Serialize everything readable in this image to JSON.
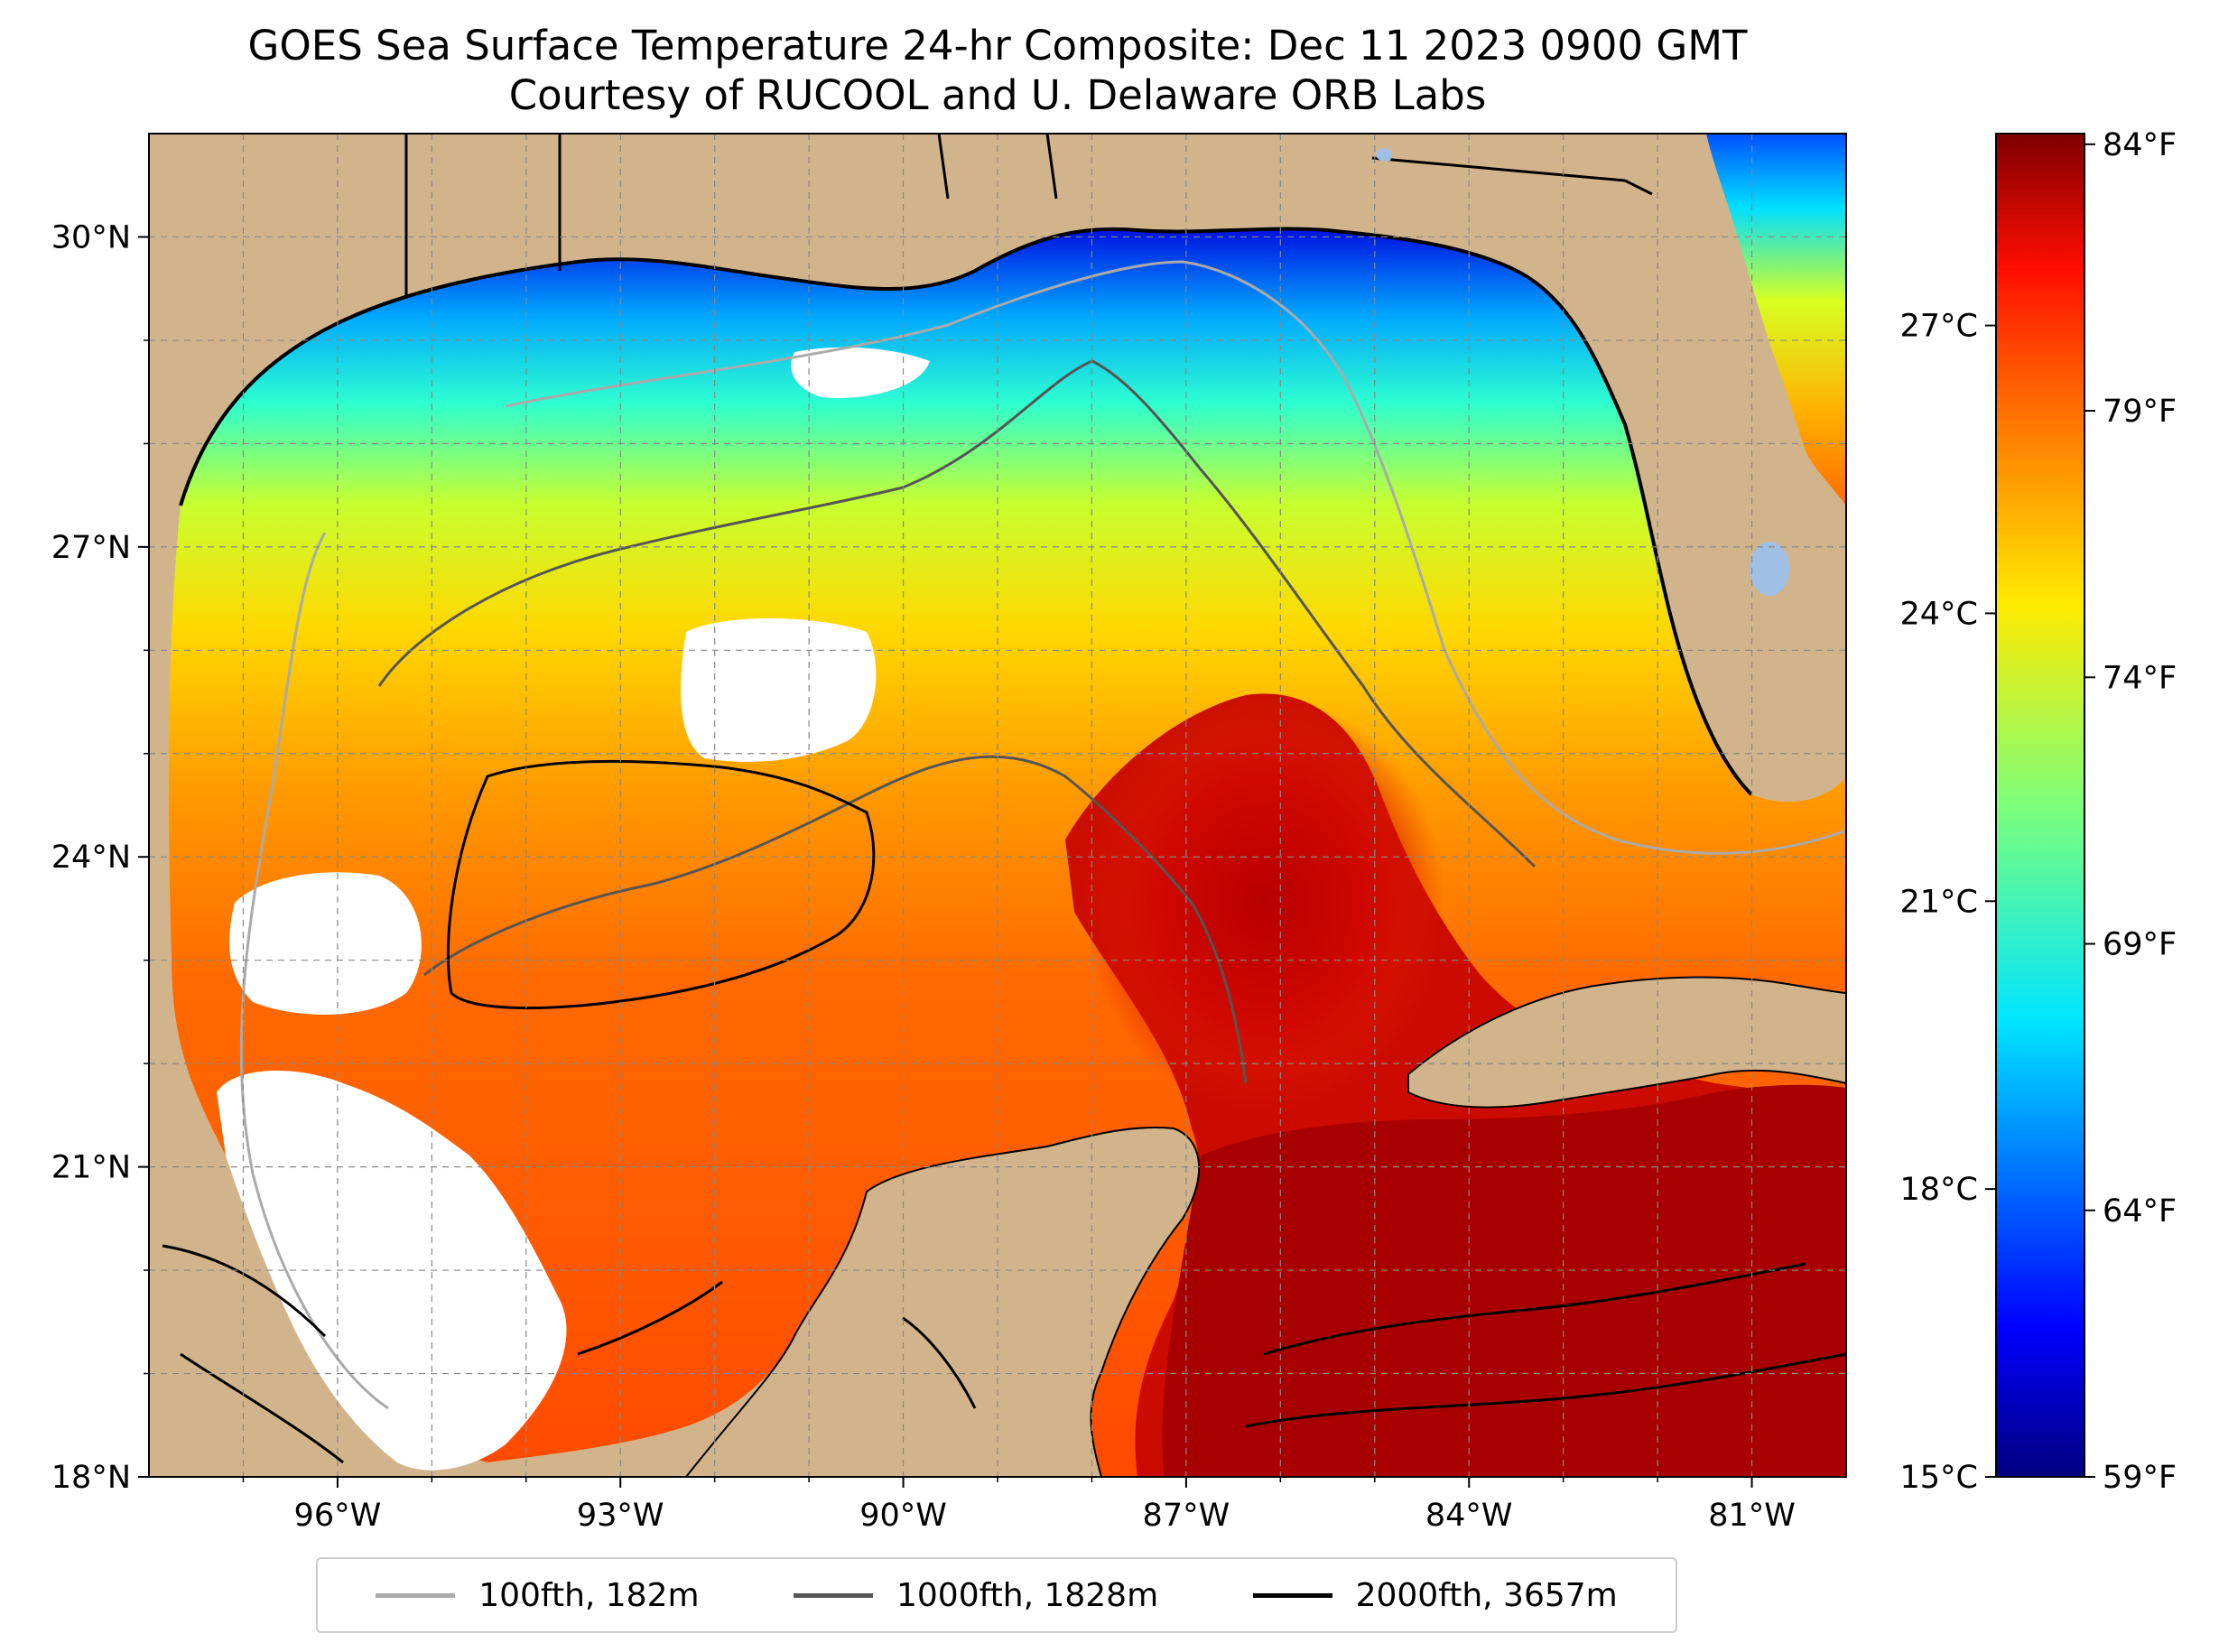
{
  "title": {
    "line1": "GOES Sea Surface Temperature 24-hr Composite: Dec 11 2023 0900 GMT",
    "line2": "Courtesy of RUCOOL and U. Delaware ORB Labs"
  },
  "map": {
    "lon_range": [
      -98,
      -80
    ],
    "lat_range": [
      18,
      31
    ],
    "lon_ticks": [
      {
        "value": -96,
        "label": "96°W"
      },
      {
        "value": -93,
        "label": "93°W"
      },
      {
        "value": -90,
        "label": "90°W"
      },
      {
        "value": -87,
        "label": "87°W"
      },
      {
        "value": -84,
        "label": "84°W"
      },
      {
        "value": -81,
        "label": "81°W"
      }
    ],
    "lat_ticks": [
      {
        "value": 18,
        "label": "18°N"
      },
      {
        "value": 21,
        "label": "21°N"
      },
      {
        "value": 24,
        "label": "24°N"
      },
      {
        "value": 27,
        "label": "27°N"
      },
      {
        "value": 30,
        "label": "30°N"
      }
    ],
    "land_color": "#d2b48c",
    "lake_color": "#9fbfe6",
    "gridlines": "dashed"
  },
  "colorbar": {
    "colormap": "jet",
    "celsius_range": [
      15,
      29
    ],
    "celsius_ticks": [
      {
        "value": 15,
        "label": "15°C"
      },
      {
        "value": 18,
        "label": "18°C"
      },
      {
        "value": 21,
        "label": "21°C"
      },
      {
        "value": 24,
        "label": "24°C"
      },
      {
        "value": 27,
        "label": "27°C"
      }
    ],
    "fahrenheit_ticks": [
      {
        "value": 59,
        "label": "59°F"
      },
      {
        "value": 64,
        "label": "64°F"
      },
      {
        "value": 69,
        "label": "69°F"
      },
      {
        "value": 74,
        "label": "74°F"
      },
      {
        "value": 79,
        "label": "79°F"
      },
      {
        "value": 84,
        "label": "84°F"
      }
    ]
  },
  "legend": {
    "items": [
      {
        "label": "100fth, 182m",
        "color": "#aaaaaa"
      },
      {
        "label": "1000fth, 1828m",
        "color": "#555555"
      },
      {
        "label": "2000fth, 3657m",
        "color": "#000000"
      }
    ]
  }
}
